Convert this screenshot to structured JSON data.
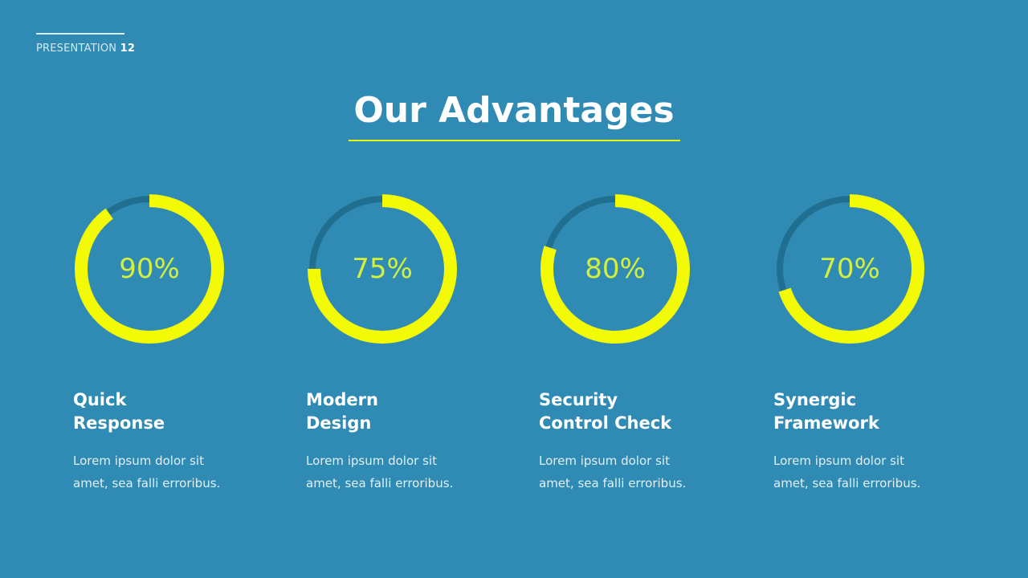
{
  "header": {
    "label": "PRESENTATION",
    "number": "12"
  },
  "title": "Our Advantages",
  "colors": {
    "background": "#2f8bb3",
    "accent": "#f2fa06",
    "track": "#206f90",
    "percent_text": "#d5ef3e"
  },
  "items": [
    {
      "percent": 90,
      "percent_label": "90%",
      "title_line1": "Quick",
      "title_line2": "Response",
      "desc_line1": "Lorem ipsum dolor sit",
      "desc_line2": "amet, sea falli erroribus."
    },
    {
      "percent": 75,
      "percent_label": "75%",
      "title_line1": "Modern",
      "title_line2": "Design",
      "desc_line1": "Lorem ipsum dolor sit",
      "desc_line2": "amet, sea falli erroribus."
    },
    {
      "percent": 80,
      "percent_label": "80%",
      "title_line1": "Security",
      "title_line2": "Control Check",
      "desc_line1": "Lorem ipsum dolor sit",
      "desc_line2": "amet, sea falli erroribus."
    },
    {
      "percent": 70,
      "percent_label": "70%",
      "title_line1": "Synergic",
      "title_line2": "Framework",
      "desc_line1": "Lorem ipsum dolor sit",
      "desc_line2": "amet, sea falli erroribus."
    }
  ]
}
